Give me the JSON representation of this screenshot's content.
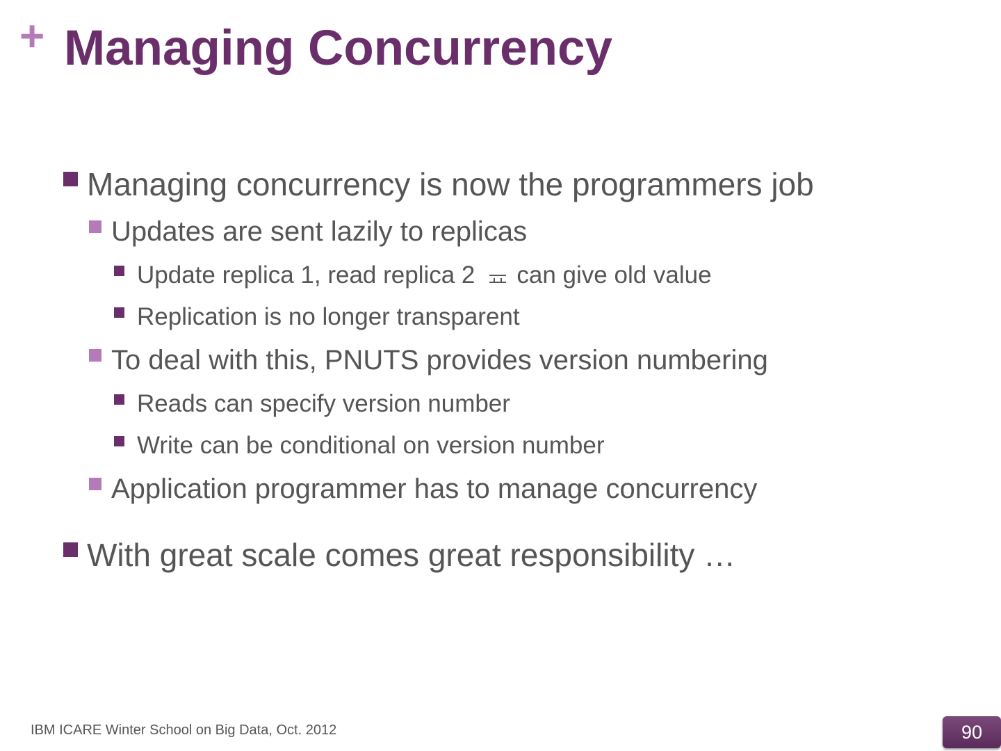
{
  "slide": {
    "title": "Managing Concurrency",
    "title_marker": "+",
    "colors": {
      "title": "#6a2f6a",
      "accent": "#b57ab9",
      "text": "#555555"
    },
    "bullets": [
      {
        "level": 1,
        "text": "Managing concurrency is now the programmers job"
      },
      {
        "level": 2,
        "text": "Updates are sent lazily to replicas"
      },
      {
        "level": 3,
        "text_before": "Update replica 1,  read replica 2",
        "icon": "arrow-icon",
        "text_after": "can give old value"
      },
      {
        "level": 3,
        "text": "Replication is no longer transparent"
      },
      {
        "level": 2,
        "text": "To deal with this, PNUTS provides version numbering"
      },
      {
        "level": 3,
        "text": "Reads can specify version number"
      },
      {
        "level": 3,
        "text": "Write can be conditional on version number"
      },
      {
        "level": 2,
        "text": "Application programmer has to manage concurrency"
      },
      {
        "level": 1,
        "text": "With great scale comes great responsibility …"
      }
    ],
    "footer": "IBM ICARE Winter School on Big Data, Oct. 2012",
    "page_number": "90"
  }
}
